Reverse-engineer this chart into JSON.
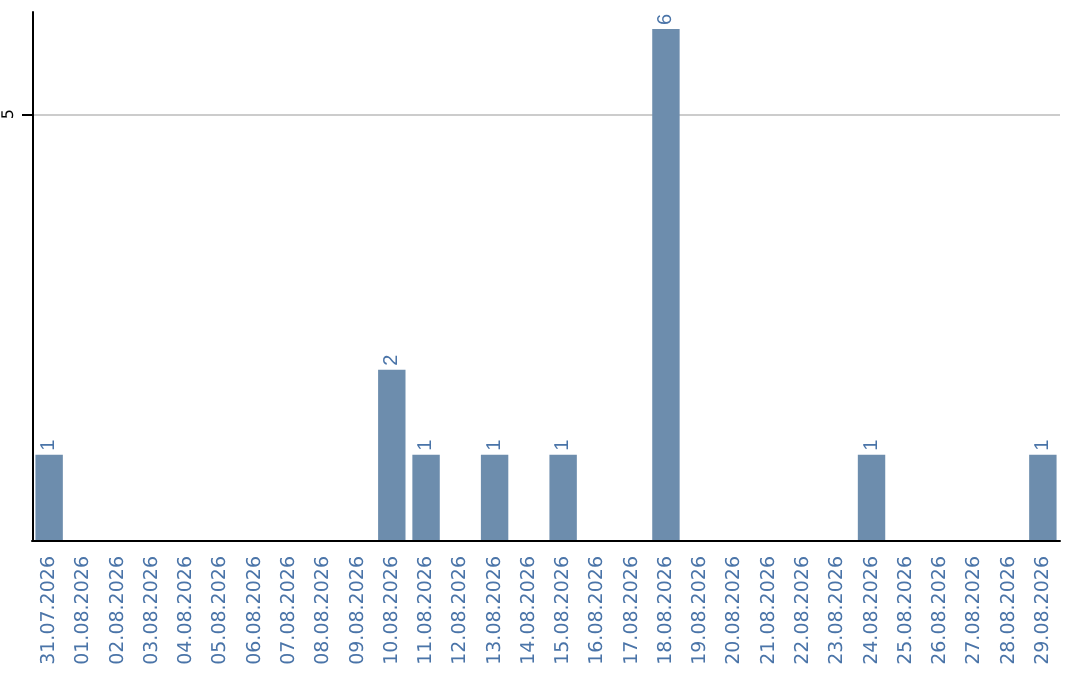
{
  "chart_data": {
    "type": "bar",
    "categories": [
      "31.07.2026",
      "01.08.2026",
      "02.08.2026",
      "03.08.2026",
      "04.08.2026",
      "05.08.2026",
      "06.08.2026",
      "07.08.2026",
      "08.08.2026",
      "09.08.2026",
      "10.08.2026",
      "11.08.2026",
      "12.08.2026",
      "13.08.2026",
      "14.08.2026",
      "15.08.2026",
      "16.08.2026",
      "17.08.2026",
      "18.08.2026",
      "19.08.2026",
      "20.08.2026",
      "21.08.2026",
      "22.08.2026",
      "23.08.2026",
      "24.08.2026",
      "25.08.2026",
      "26.08.2026",
      "27.08.2026",
      "28.08.2026",
      "29.08.2026"
    ],
    "values": [
      1,
      0,
      0,
      0,
      0,
      0,
      0,
      0,
      0,
      0,
      2,
      1,
      0,
      1,
      0,
      1,
      0,
      0,
      6,
      0,
      0,
      0,
      0,
      0,
      1,
      0,
      0,
      0,
      0,
      1
    ],
    "value_labels": [
      "1",
      null,
      null,
      null,
      null,
      null,
      null,
      null,
      null,
      null,
      "2",
      "1",
      null,
      "1",
      null,
      "1",
      null,
      null,
      "6",
      null,
      null,
      null,
      null,
      null,
      "1",
      null,
      null,
      null,
      null,
      "1"
    ],
    "color": "#6d8dad",
    "ylim": [
      0,
      6.2
    ],
    "yticks": [
      5
    ],
    "grid": "y"
  }
}
